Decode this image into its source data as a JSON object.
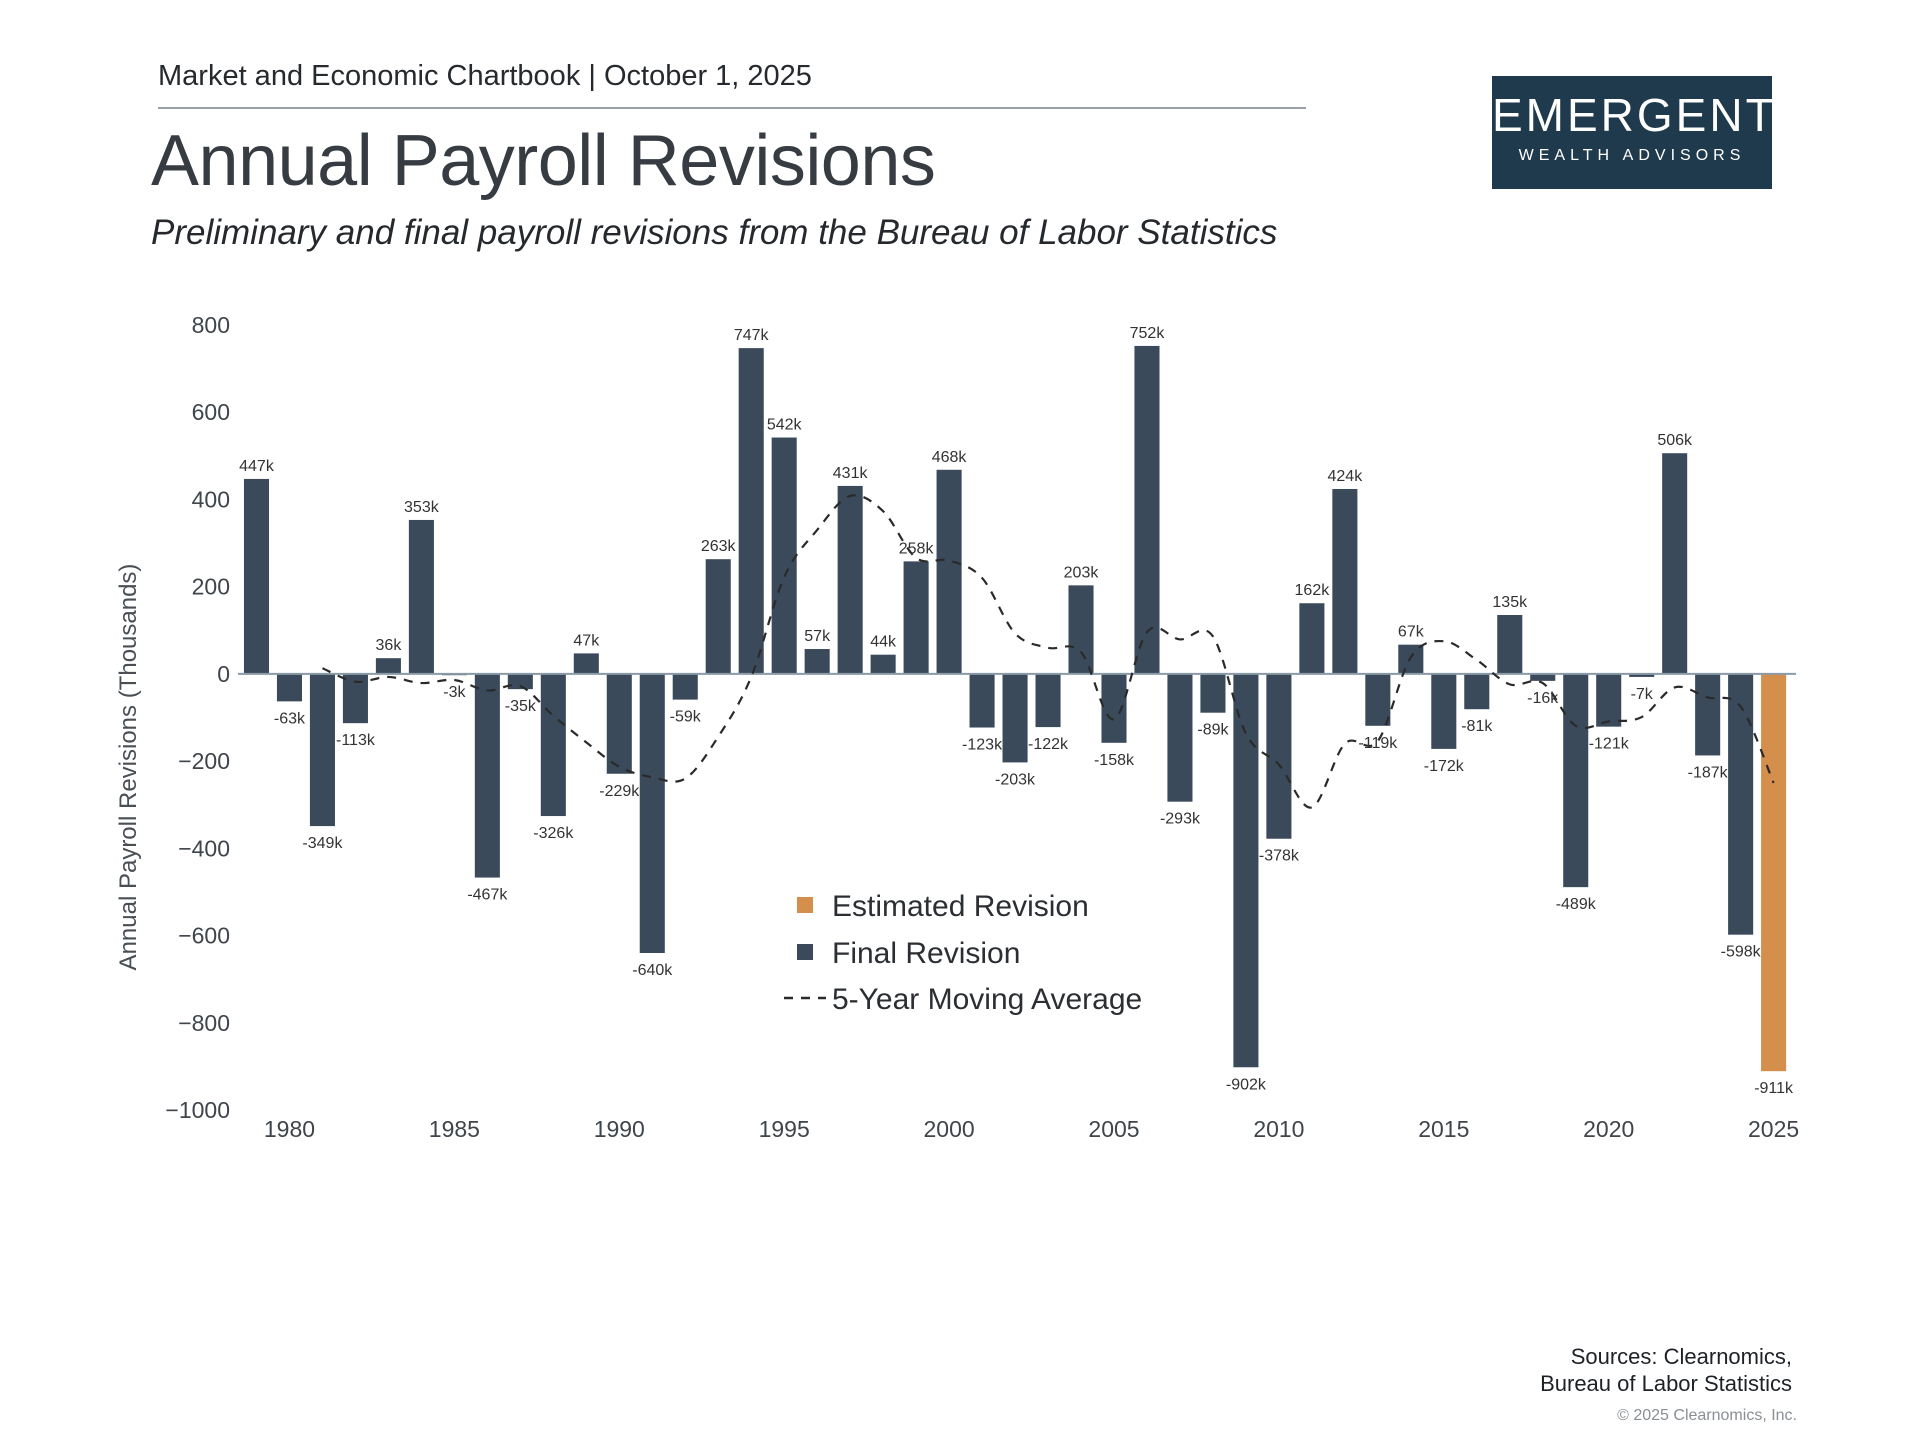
{
  "header": {
    "chartbook": "Market and Economic Chartbook | October 1, 2025",
    "title": "Annual Payroll Revisions",
    "subtitle": "Preliminary and final payroll revisions from the Bureau of Labor Statistics"
  },
  "logo": {
    "name": "EMERGENT",
    "tagline": "WEALTH ADVISORS"
  },
  "footer": {
    "sources_line1": "Sources: Clearnomics,",
    "sources_line2": "Bureau of Labor Statistics",
    "copyright": "© 2025 Clearnomics, Inc."
  },
  "colors": {
    "final": "#3b4a5a",
    "estimated": "#d38f4b",
    "axis": "#8a9aa6",
    "line": "#2a2a2a",
    "logo_bg": "#1f3a4d"
  },
  "chart_data": {
    "type": "bar",
    "ylabel": "Annual Payroll Revisions (Thousands)",
    "ylim": [
      -1000,
      800
    ],
    "yticks": [
      800,
      600,
      400,
      200,
      0,
      -200,
      -400,
      -600,
      -800,
      -1000
    ],
    "ytick_labels": [
      "800",
      "600",
      "400",
      "200",
      "0",
      "−200",
      "−400",
      "−600",
      "−800",
      "−1000"
    ],
    "xticks": [
      1980,
      1985,
      1990,
      1995,
      2000,
      2005,
      2010,
      2015,
      2020,
      2025
    ],
    "xlim": [
      1978.5,
      2025.8
    ],
    "legend": [
      "Estimated Revision",
      "Final Revision",
      "5-Year Moving Average"
    ],
    "legend_position": "center",
    "series": [
      {
        "name": "Final Revision",
        "points": [
          {
            "year": 1979,
            "value": 447,
            "label": "447k"
          },
          {
            "year": 1980,
            "value": -63,
            "label": "-63k"
          },
          {
            "year": 1981,
            "value": -349,
            "label": "-349k"
          },
          {
            "year": 1982,
            "value": -113,
            "label": "-113k"
          },
          {
            "year": 1983,
            "value": 36,
            "label": "36k"
          },
          {
            "year": 1984,
            "value": 353,
            "label": "353k"
          },
          {
            "year": 1985,
            "value": -3,
            "label": "-3k"
          },
          {
            "year": 1986,
            "value": -467,
            "label": "-467k"
          },
          {
            "year": 1987,
            "value": -35,
            "label": "-35k"
          },
          {
            "year": 1988,
            "value": -326,
            "label": "-326k"
          },
          {
            "year": 1989,
            "value": 47,
            "label": "47k"
          },
          {
            "year": 1990,
            "value": -229,
            "label": "-229k"
          },
          {
            "year": 1991,
            "value": -640,
            "label": "-640k"
          },
          {
            "year": 1992,
            "value": -59,
            "label": "-59k"
          },
          {
            "year": 1993,
            "value": 263,
            "label": "263k"
          },
          {
            "year": 1994,
            "value": 747,
            "label": "747k"
          },
          {
            "year": 1995,
            "value": 542,
            "label": "542k"
          },
          {
            "year": 1996,
            "value": 57,
            "label": "57k"
          },
          {
            "year": 1997,
            "value": 431,
            "label": "431k"
          },
          {
            "year": 1998,
            "value": 44,
            "label": "44k"
          },
          {
            "year": 1999,
            "value": 258,
            "label": "258k"
          },
          {
            "year": 2000,
            "value": 468,
            "label": "468k"
          },
          {
            "year": 2001,
            "value": -123,
            "label": "-123k"
          },
          {
            "year": 2002,
            "value": -203,
            "label": "-203k"
          },
          {
            "year": 2003,
            "value": -122,
            "label": "-122k"
          },
          {
            "year": 2004,
            "value": 203,
            "label": "203k"
          },
          {
            "year": 2005,
            "value": -158,
            "label": "-158k"
          },
          {
            "year": 2006,
            "value": 752,
            "label": "752k"
          },
          {
            "year": 2007,
            "value": -293,
            "label": "-293k"
          },
          {
            "year": 2008,
            "value": -89,
            "label": "-89k"
          },
          {
            "year": 2009,
            "value": -902,
            "label": "-902k"
          },
          {
            "year": 2010,
            "value": -378,
            "label": "-378k"
          },
          {
            "year": 2011,
            "value": 162,
            "label": "162k"
          },
          {
            "year": 2012,
            "value": 424,
            "label": "424k"
          },
          {
            "year": 2013,
            "value": -119,
            "label": "-119k"
          },
          {
            "year": 2014,
            "value": 67,
            "label": "67k"
          },
          {
            "year": 2015,
            "value": -172,
            "label": "-172k"
          },
          {
            "year": 2016,
            "value": -81,
            "label": "-81k"
          },
          {
            "year": 2017,
            "value": 135,
            "label": "135k"
          },
          {
            "year": 2018,
            "value": -16,
            "label": "-16k"
          },
          {
            "year": 2019,
            "value": -489,
            "label": "-489k"
          },
          {
            "year": 2020,
            "value": -121,
            "label": "-121k"
          },
          {
            "year": 2021,
            "value": -7,
            "label": "-7k"
          },
          {
            "year": 2022,
            "value": 506,
            "label": "506k"
          },
          {
            "year": 2023,
            "value": -187,
            "label": "-187k"
          },
          {
            "year": 2024,
            "value": -598,
            "label": "-598k"
          }
        ]
      },
      {
        "name": "Estimated Revision",
        "points": [
          {
            "year": 2025,
            "value": -911,
            "label": "-911k"
          }
        ]
      },
      {
        "name": "5-Year Moving Average",
        "x": [
          1981,
          1982,
          1983,
          1984,
          1985,
          1986,
          1987,
          1988,
          1989,
          1990,
          1991,
          1992,
          1993,
          1994,
          1995,
          1996,
          1997,
          1998,
          1999,
          2000,
          2001,
          2002,
          2003,
          2004,
          2005,
          2006,
          2007,
          2008,
          2009,
          2010,
          2011,
          2012,
          2013,
          2014,
          2015,
          2016,
          2017,
          2018,
          2019,
          2020,
          2021,
          2022,
          2023,
          2024,
          2025
        ],
        "y": [
          13,
          -18,
          -7,
          -21,
          -14,
          -38,
          -28,
          -96,
          -157,
          -213,
          -237,
          -240,
          -144,
          -7,
          222,
          330,
          408,
          373,
          266,
          260,
          220,
          93,
          60,
          50,
          -104,
          96,
          79,
          86,
          -137,
          -208,
          -306,
          -160,
          -154,
          38,
          75,
          32,
          -24,
          -21,
          -119,
          -109,
          -99,
          -31,
          -54,
          -75,
          -250
        ]
      }
    ]
  }
}
